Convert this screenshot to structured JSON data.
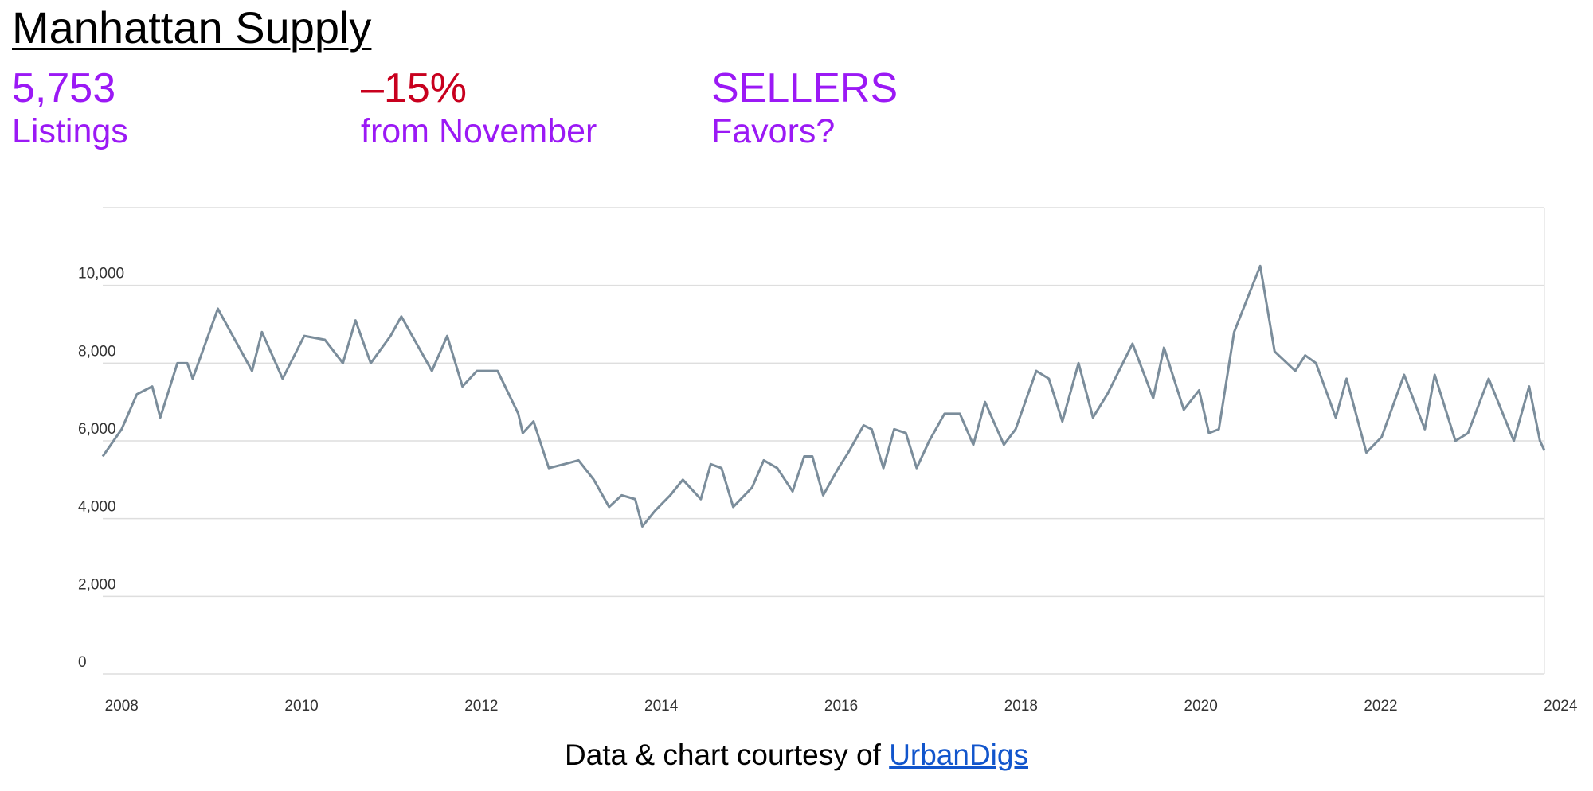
{
  "header": {
    "title": "Manhattan Supply"
  },
  "stats": [
    {
      "value": "5,753",
      "label": "Listings"
    },
    {
      "value": "–15%",
      "label": "from November"
    },
    {
      "value": "SELLERS",
      "label": "Favors?"
    }
  ],
  "chart_data": {
    "type": "line",
    "x": [
      2007.79,
      2008.0,
      2008.17,
      2008.34,
      2008.43,
      2008.62,
      2008.73,
      2008.79,
      2009.07,
      2009.45,
      2009.56,
      2009.79,
      2010.03,
      2010.26,
      2010.46,
      2010.6,
      2010.77,
      2010.99,
      2011.11,
      2011.45,
      2011.62,
      2011.79,
      2011.95,
      2012.18,
      2012.41,
      2012.46,
      2012.58,
      2012.75,
      2012.92,
      2013.08,
      2013.25,
      2013.42,
      2013.56,
      2013.71,
      2013.79,
      2013.93,
      2014.1,
      2014.24,
      2014.44,
      2014.55,
      2014.67,
      2014.8,
      2015.01,
      2015.14,
      2015.29,
      2015.46,
      2015.59,
      2015.68,
      2015.8,
      2015.97,
      2016.08,
      2016.25,
      2016.34,
      2016.47,
      2016.59,
      2016.72,
      2016.84,
      2016.98,
      2017.15,
      2017.32,
      2017.47,
      2017.6,
      2017.81,
      2017.94,
      2018.17,
      2018.31,
      2018.46,
      2018.64,
      2018.8,
      2018.96,
      2019.24,
      2019.47,
      2019.59,
      2019.81,
      2019.98,
      2020.09,
      2020.2,
      2020.37,
      2020.54,
      2020.66,
      2020.82,
      2021.05,
      2021.16,
      2021.28,
      2021.5,
      2021.62,
      2021.84,
      2022.01,
      2022.26,
      2022.49,
      2022.6,
      2022.83,
      2022.97,
      2023.2,
      2023.48,
      2023.65,
      2023.77,
      2023.82
    ],
    "series": [
      {
        "color": "#7b8d9b",
        "values": [
          5600,
          6300,
          7200,
          7400,
          6600,
          8000,
          8000,
          7600,
          9400,
          7800,
          8800,
          7600,
          8700,
          8600,
          8000,
          9100,
          8000,
          8700,
          9200,
          7800,
          8700,
          7400,
          7800,
          7800,
          6700,
          6200,
          6500,
          5300,
          5400,
          5500,
          5000,
          4300,
          4600,
          4500,
          3800,
          4200,
          4600,
          5000,
          4500,
          5400,
          5300,
          4300,
          4800,
          5500,
          5300,
          4700,
          5600,
          5600,
          4600,
          5300,
          5700,
          6400,
          6300,
          5300,
          6300,
          6200,
          5300,
          6000,
          6700,
          6700,
          5900,
          7000,
          5900,
          6300,
          7800,
          7600,
          6500,
          8000,
          6600,
          7200,
          8500,
          7100,
          8400,
          6800,
          7300,
          6200,
          6300,
          8800,
          9800,
          10500,
          8300,
          7800,
          8200,
          8000,
          6600,
          7600,
          5700,
          6100,
          7700,
          6300,
          7700,
          6000,
          6200,
          7600,
          6000,
          7400,
          6000,
          5753
        ]
      }
    ],
    "xlim": [
      2007.79,
      2023.82
    ],
    "xticks": [
      2008,
      2010,
      2012,
      2014,
      2016,
      2018,
      2020,
      2022,
      2024
    ],
    "ylim": [
      0,
      12000
    ],
    "yticks": [
      0,
      {
        "value": 2000,
        "label": "2,000"
      },
      {
        "value": 4000,
        "label": "4,000"
      },
      {
        "value": 6000,
        "label": "6,000"
      },
      {
        "value": 8000,
        "label": "8,000"
      },
      {
        "value": 10000,
        "label": "10,000"
      }
    ],
    "grid": true
  },
  "footer": {
    "text": "Data & chart courtesy of",
    "link": "UrbanDigs"
  }
}
